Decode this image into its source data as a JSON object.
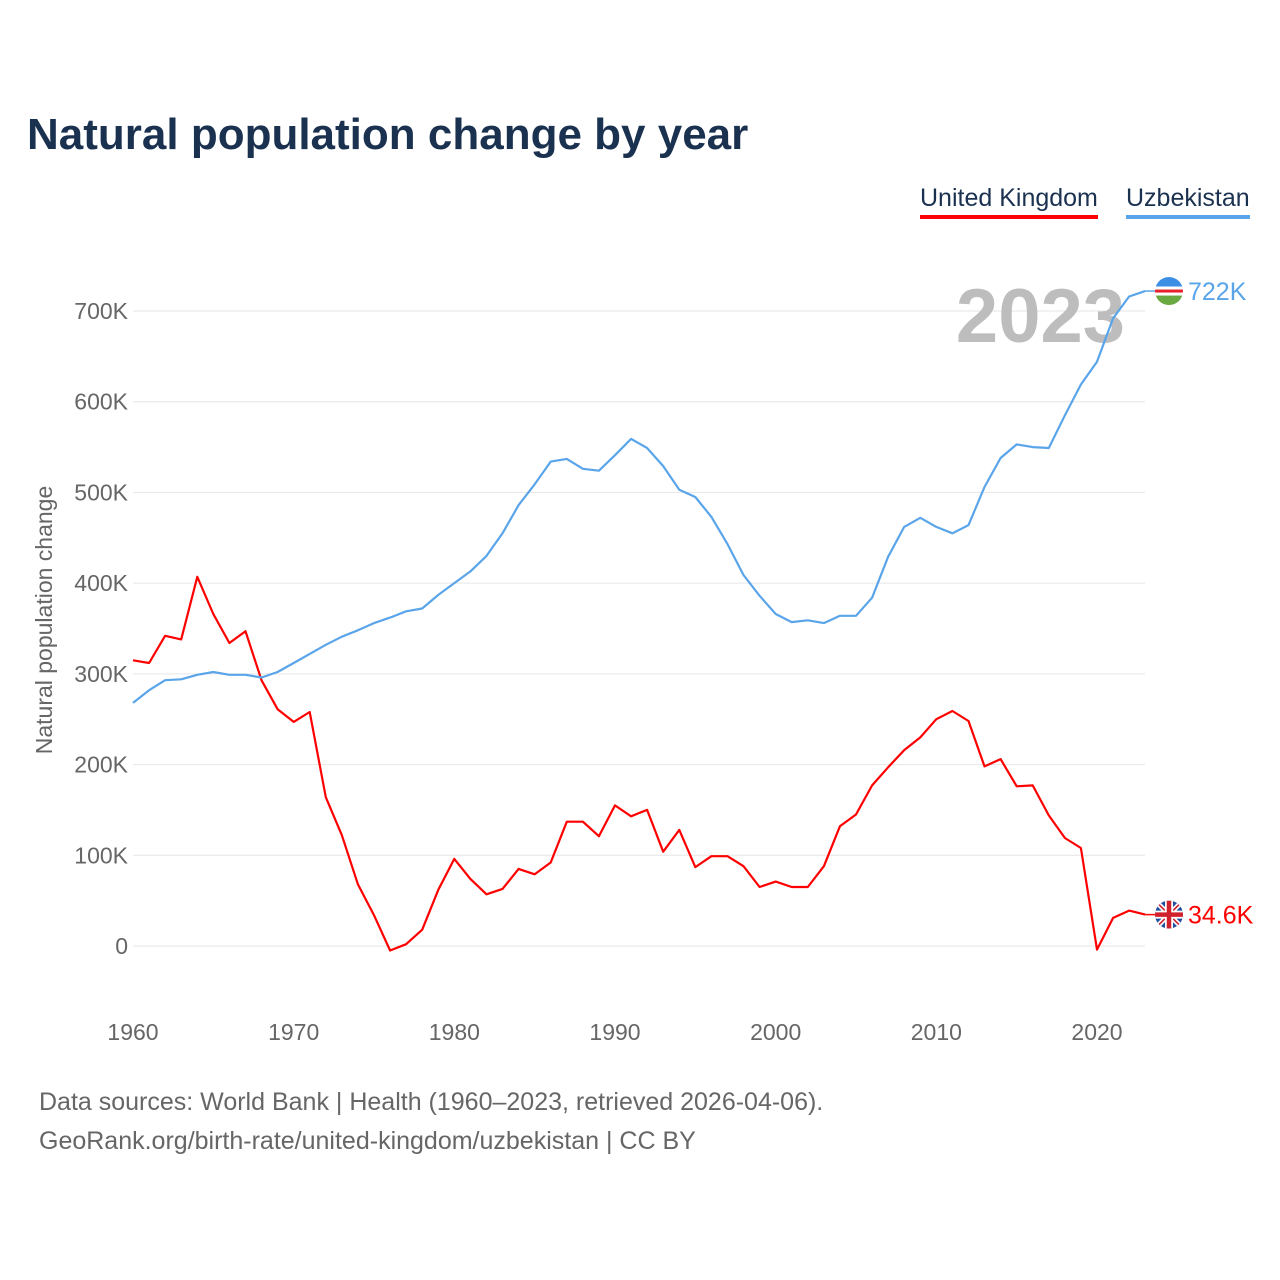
{
  "chart_data": {
    "type": "line",
    "title": "Natural population change by year",
    "ylabel": "Natural population change",
    "xlabel": "",
    "ylim": [
      -60000,
      760000
    ],
    "xlim": [
      1960,
      2023
    ],
    "yticks": [
      0,
      100000,
      200000,
      300000,
      400000,
      500000,
      600000,
      700000
    ],
    "ytick_labels": [
      "0",
      "100K",
      "200K",
      "300K",
      "400K",
      "500K",
      "600K",
      "700K"
    ],
    "xticks": [
      1960,
      1970,
      1980,
      1990,
      2000,
      2010,
      2020
    ],
    "xtick_labels": [
      "1960",
      "1970",
      "1980",
      "1990",
      "2000",
      "2010",
      "2020"
    ],
    "grid": true,
    "legend_position": "top-right",
    "year_label": "2023",
    "x": [
      1960,
      1961,
      1962,
      1963,
      1964,
      1965,
      1966,
      1967,
      1968,
      1969,
      1970,
      1971,
      1972,
      1973,
      1974,
      1975,
      1976,
      1977,
      1978,
      1979,
      1980,
      1981,
      1982,
      1983,
      1984,
      1985,
      1986,
      1987,
      1988,
      1989,
      1990,
      1991,
      1992,
      1993,
      1994,
      1995,
      1996,
      1997,
      1998,
      1999,
      2000,
      2001,
      2002,
      2003,
      2004,
      2005,
      2006,
      2007,
      2008,
      2009,
      2010,
      2011,
      2012,
      2013,
      2014,
      2015,
      2016,
      2017,
      2018,
      2019,
      2020,
      2021,
      2022,
      2023
    ],
    "series": [
      {
        "name": "United Kingdom",
        "color": "#ff0000",
        "end_label": "34.6K",
        "flag": "uk-flag",
        "values": [
          315000,
          312000,
          342000,
          338000,
          407000,
          366000,
          334000,
          347000,
          293000,
          261000,
          247000,
          258000,
          164000,
          122000,
          68000,
          34000,
          -5000,
          2000,
          18000,
          62000,
          96000,
          74000,
          57000,
          63000,
          85000,
          79000,
          92000,
          137000,
          137000,
          121000,
          155000,
          143000,
          150000,
          104000,
          128000,
          87000,
          99000,
          99000,
          88000,
          65000,
          71000,
          65000,
          65000,
          88000,
          132000,
          145000,
          177000,
          197000,
          216000,
          230000,
          250000,
          259000,
          248000,
          198000,
          206000,
          176000,
          177000,
          144000,
          119000,
          108000,
          -4000,
          31000,
          39000,
          34600
        ]
      },
      {
        "name": "Uzbekistan",
        "color": "#5aa5ea",
        "end_label": "722K",
        "flag": "uz-flag",
        "values": [
          268000,
          282000,
          293000,
          294000,
          299000,
          302000,
          299000,
          299000,
          296000,
          302000,
          312000,
          322000,
          332000,
          341000,
          348000,
          356000,
          362000,
          369000,
          372000,
          387000,
          400000,
          413000,
          430000,
          455000,
          486000,
          509000,
          534000,
          537000,
          526000,
          524000,
          541000,
          559000,
          549000,
          529000,
          503000,
          495000,
          473000,
          443000,
          409000,
          386000,
          366000,
          357000,
          359000,
          356000,
          364000,
          364000,
          384000,
          429000,
          462000,
          472000,
          462000,
          455000,
          464000,
          506000,
          538000,
          553000,
          550000,
          549000,
          585000,
          619000,
          644000,
          692000,
          716000,
          722000
        ]
      }
    ]
  },
  "legend": {
    "uk": "United Kingdom",
    "uz": "Uzbekistan"
  },
  "footer": {
    "line1": "Data sources: World Bank | Health (1960–2023, retrieved 2026-04-06).",
    "line2": "GeoRank.org/birth-rate/united-kingdom/uzbekistan | CC BY"
  }
}
